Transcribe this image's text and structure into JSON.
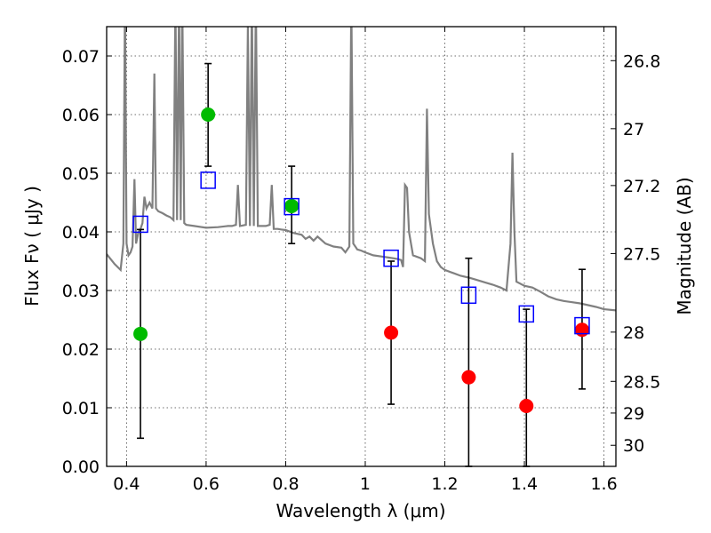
{
  "chart_data": {
    "type": "scatter",
    "title": "",
    "xlabel": "Wavelength  λ (μm)",
    "ylabel": "Flux  Fν  ( μJy )",
    "ylabel_right": "Magnitude (AB)",
    "xlim": [
      0.35,
      1.63
    ],
    "ylim": [
      0.0,
      0.075
    ],
    "grid": true,
    "x_ticks": [
      0.4,
      0.6,
      0.8,
      1.0,
      1.2,
      1.4,
      1.6
    ],
    "x_tick_labels": [
      "0.4",
      "0.6",
      "0.8",
      "1",
      "1.2",
      "1.4",
      "1.6"
    ],
    "y_ticks": [
      0.0,
      0.01,
      0.02,
      0.03,
      0.04,
      0.05,
      0.06,
      0.07
    ],
    "y_tick_labels": [
      "0.00",
      "0.01",
      "0.02",
      "0.03",
      "0.04",
      "0.05",
      "0.06",
      "0.07"
    ],
    "right_ticks": [
      {
        "label": "26.8",
        "flux": 0.0692
      },
      {
        "label": "27",
        "flux": 0.0576
      },
      {
        "label": "27.2",
        "flux": 0.0479
      },
      {
        "label": "27.5",
        "flux": 0.0363
      },
      {
        "label": "28",
        "flux": 0.0229
      },
      {
        "label": "28.5",
        "flux": 0.0145
      },
      {
        "label": "29",
        "flux": 0.0091
      },
      {
        "label": "30",
        "flux": 0.0036
      }
    ],
    "series": [
      {
        "kind": "measured-detection",
        "color": "#00bb00",
        "points": [
          {
            "x": 0.435,
            "y": 0.0226,
            "err_low": 0.0048,
            "err_high": 0.0404
          },
          {
            "x": 0.605,
            "y": 0.06,
            "err_low": 0.0512,
            "err_high": 0.0687
          },
          {
            "x": 0.815,
            "y": 0.0444,
            "err_low": 0.038,
            "err_high": 0.0512
          }
        ]
      },
      {
        "kind": "measured-other",
        "color": "#ff0000",
        "points": [
          {
            "x": 1.065,
            "y": 0.0228,
            "err_low": 0.0106,
            "err_high": 0.035
          },
          {
            "x": 1.26,
            "y": 0.0152,
            "err_low": 0.0,
            "err_high": 0.0355
          },
          {
            "x": 1.405,
            "y": 0.0103,
            "err_low": 0.0,
            "err_high": 0.0268
          },
          {
            "x": 1.545,
            "y": 0.0233,
            "err_low": 0.0132,
            "err_high": 0.0336
          }
        ]
      },
      {
        "kind": "model-synthetic",
        "color": "#0000ff",
        "points": [
          {
            "x": 0.435,
            "y": 0.0413
          },
          {
            "x": 0.605,
            "y": 0.0488
          },
          {
            "x": 0.815,
            "y": 0.0443
          },
          {
            "x": 1.065,
            "y": 0.0355
          },
          {
            "x": 1.26,
            "y": 0.0292
          },
          {
            "x": 1.405,
            "y": 0.026
          },
          {
            "x": 1.545,
            "y": 0.024
          }
        ]
      }
    ],
    "template_spectrum": {
      "color": "#808080",
      "points": [
        [
          0.35,
          0.0362
        ],
        [
          0.37,
          0.0345
        ],
        [
          0.385,
          0.0335
        ],
        [
          0.392,
          0.038
        ],
        [
          0.396,
          0.08
        ],
        [
          0.4,
          0.038
        ],
        [
          0.405,
          0.036
        ],
        [
          0.41,
          0.0365
        ],
        [
          0.415,
          0.0375
        ],
        [
          0.42,
          0.049
        ],
        [
          0.424,
          0.038
        ],
        [
          0.43,
          0.04
        ],
        [
          0.435,
          0.0405
        ],
        [
          0.44,
          0.0415
        ],
        [
          0.445,
          0.046
        ],
        [
          0.45,
          0.044
        ],
        [
          0.458,
          0.045
        ],
        [
          0.465,
          0.044
        ],
        [
          0.47,
          0.067
        ],
        [
          0.474,
          0.044
        ],
        [
          0.48,
          0.0435
        ],
        [
          0.49,
          0.0432
        ],
        [
          0.5,
          0.0428
        ],
        [
          0.51,
          0.0425
        ],
        [
          0.518,
          0.042
        ],
        [
          0.523,
          0.08
        ],
        [
          0.527,
          0.042
        ],
        [
          0.532,
          0.08
        ],
        [
          0.536,
          0.042
        ],
        [
          0.54,
          0.08
        ],
        [
          0.545,
          0.0415
        ],
        [
          0.55,
          0.0412
        ],
        [
          0.57,
          0.041
        ],
        [
          0.6,
          0.0407
        ],
        [
          0.63,
          0.0408
        ],
        [
          0.655,
          0.041
        ],
        [
          0.66,
          0.041
        ],
        [
          0.665,
          0.041
        ],
        [
          0.675,
          0.0412
        ],
        [
          0.68,
          0.048
        ],
        [
          0.685,
          0.041
        ],
        [
          0.7,
          0.0412
        ],
        [
          0.705,
          0.075
        ],
        [
          0.71,
          0.041
        ],
        [
          0.715,
          0.08
        ],
        [
          0.72,
          0.041
        ],
        [
          0.725,
          0.08
        ],
        [
          0.73,
          0.041
        ],
        [
          0.75,
          0.041
        ],
        [
          0.76,
          0.0412
        ],
        [
          0.765,
          0.048
        ],
        [
          0.77,
          0.0405
        ],
        [
          0.78,
          0.0405
        ],
        [
          0.79,
          0.0404
        ],
        [
          0.8,
          0.0403
        ],
        [
          0.82,
          0.0398
        ],
        [
          0.84,
          0.0395
        ],
        [
          0.85,
          0.0388
        ],
        [
          0.86,
          0.0392
        ],
        [
          0.87,
          0.0385
        ],
        [
          0.88,
          0.0392
        ],
        [
          0.9,
          0.038
        ],
        [
          0.92,
          0.0375
        ],
        [
          0.94,
          0.0373
        ],
        [
          0.95,
          0.0365
        ],
        [
          0.96,
          0.0375
        ],
        [
          0.965,
          0.08
        ],
        [
          0.97,
          0.038
        ],
        [
          0.975,
          0.0375
        ],
        [
          0.98,
          0.037
        ],
        [
          0.99,
          0.0368
        ],
        [
          1.0,
          0.0365
        ],
        [
          1.02,
          0.036
        ],
        [
          1.04,
          0.0358
        ],
        [
          1.06,
          0.0356
        ],
        [
          1.08,
          0.0354
        ],
        [
          1.09,
          0.0352
        ],
        [
          1.095,
          0.034
        ],
        [
          1.1,
          0.048
        ],
        [
          1.105,
          0.0475
        ],
        [
          1.11,
          0.04
        ],
        [
          1.12,
          0.036
        ],
        [
          1.14,
          0.0355
        ],
        [
          1.15,
          0.035
        ],
        [
          1.155,
          0.061
        ],
        [
          1.16,
          0.043
        ],
        [
          1.17,
          0.038
        ],
        [
          1.18,
          0.035
        ],
        [
          1.19,
          0.034
        ],
        [
          1.2,
          0.0335
        ],
        [
          1.22,
          0.033
        ],
        [
          1.24,
          0.0325
        ],
        [
          1.26,
          0.0322
        ],
        [
          1.28,
          0.0318
        ],
        [
          1.3,
          0.0314
        ],
        [
          1.32,
          0.031
        ],
        [
          1.34,
          0.0305
        ],
        [
          1.355,
          0.03
        ],
        [
          1.365,
          0.038
        ],
        [
          1.37,
          0.0535
        ],
        [
          1.375,
          0.04
        ],
        [
          1.38,
          0.0315
        ],
        [
          1.4,
          0.0308
        ],
        [
          1.42,
          0.0305
        ],
        [
          1.44,
          0.0298
        ],
        [
          1.46,
          0.029
        ],
        [
          1.48,
          0.0285
        ],
        [
          1.5,
          0.0282
        ],
        [
          1.52,
          0.028
        ],
        [
          1.54,
          0.0278
        ],
        [
          1.56,
          0.0275
        ],
        [
          1.58,
          0.0272
        ],
        [
          1.6,
          0.0268
        ],
        [
          1.63,
          0.0266
        ]
      ]
    }
  }
}
